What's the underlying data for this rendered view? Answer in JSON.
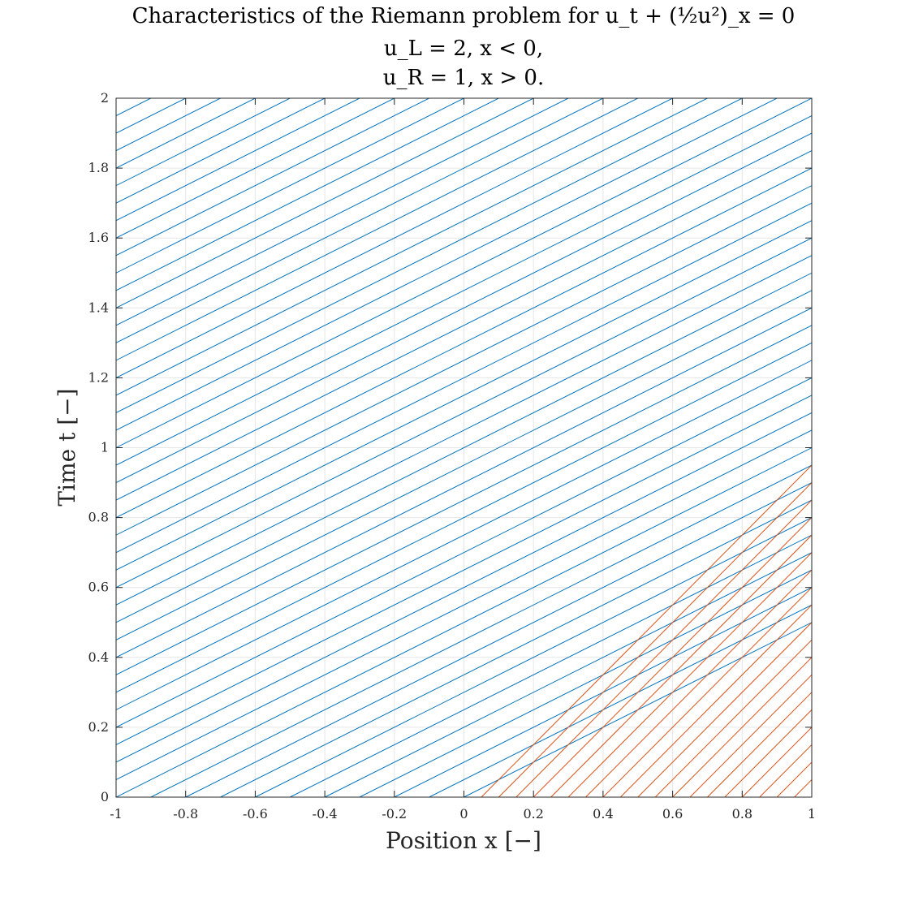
{
  "chart_data": {
    "type": "line",
    "title_lines": [
      "Characteristics of the Riemann problem for u_t + (½u²)_x = 0",
      "u_L = 2, x < 0,",
      "u_R = 1, x > 0."
    ],
    "xlabel": "Position x [−]",
    "ylabel": "Time t [−]",
    "xlim": [
      -1,
      1
    ],
    "ylim": [
      0,
      2
    ],
    "x_ticks": [
      -1,
      -0.8,
      -0.6,
      -0.4,
      -0.2,
      0,
      0.2,
      0.4,
      0.6,
      0.8,
      1
    ],
    "x_tick_labels": [
      "-1",
      "-0.8",
      "-0.6",
      "-0.4",
      "-0.2",
      "0",
      "0.2",
      "0.4",
      "0.6",
      "0.8",
      "1"
    ],
    "y_ticks": [
      0,
      0.2,
      0.4,
      0.6,
      0.8,
      1,
      1.2,
      1.4,
      1.6,
      1.8,
      2
    ],
    "y_tick_labels": [
      "0",
      "0.2",
      "0.4",
      "0.6",
      "0.8",
      "1",
      "1.2",
      "1.4",
      "1.6",
      "1.8",
      "2"
    ],
    "grid": true,
    "series": [
      {
        "speed": 2,
        "color": "#0072bd",
        "x0_start": -5,
        "x0_end": 0,
        "x0_step": 0.1
      },
      {
        "speed": 1,
        "color": "#d95319",
        "x0_start": 0.05,
        "x0_end": 1,
        "x0_step": 0.05
      }
    ]
  }
}
